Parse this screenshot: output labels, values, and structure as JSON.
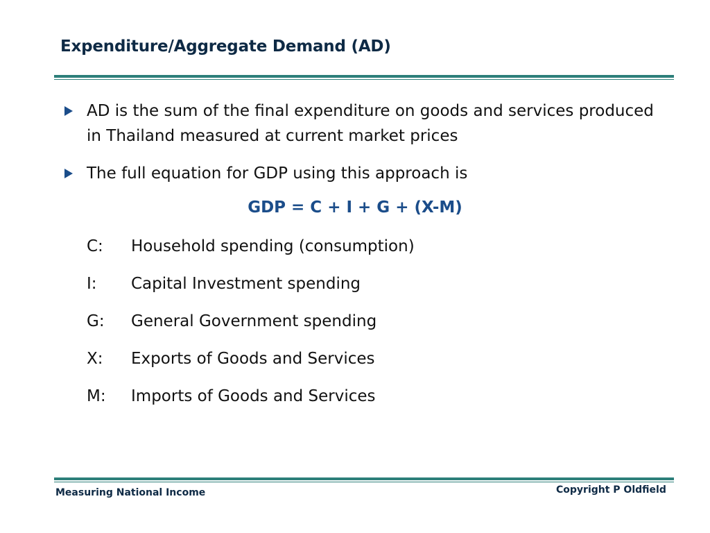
{
  "slide": {
    "title": "Expenditure/Aggregate Demand (AD)",
    "bullets": [
      "AD is the sum of the final expenditure on goods and services produced in Thailand  measured at current market prices",
      "The full equation for GDP using this approach is"
    ],
    "equation": "GDP = C + I + G + (X-M)",
    "definitions": [
      {
        "key": "C:",
        "text": "Household spending (consumption)"
      },
      {
        "key": "I:",
        "text": "Capital Investment spending"
      },
      {
        "key": "G:",
        "text": "General Government spending"
      },
      {
        "key": "X:",
        "text": "Exports of Goods and Services"
      },
      {
        "key": "M:",
        "text": "Imports of Goods and Services"
      }
    ]
  },
  "footer": {
    "left": "Measuring National Income",
    "right": "Copyright P Oldfield"
  },
  "colors": {
    "title": "#0e2a45",
    "rule": "#2d7f7a",
    "equation": "#1b4d8a",
    "bullet_marker": "#1b4d8a"
  },
  "icons": {
    "bullet": "triangle-bullet-icon"
  }
}
